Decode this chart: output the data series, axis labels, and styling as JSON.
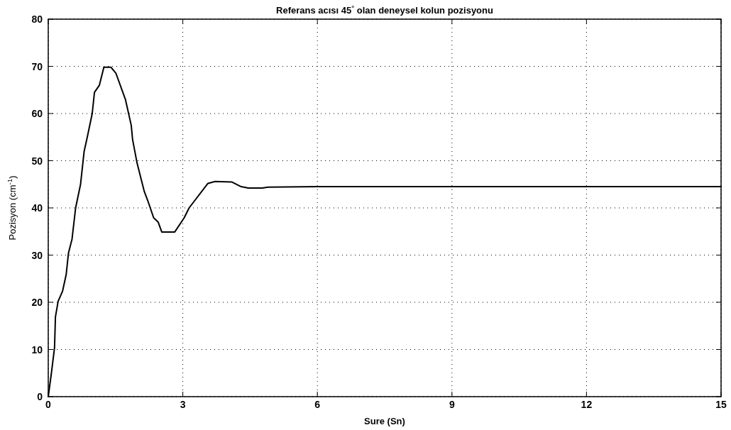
{
  "chart_data": {
    "type": "line",
    "title": "Referans acısı 45$^{°}$ olan deneysel kolun pozisyonu",
    "xlabel": "Sure (Sn)",
    "ylabel": "Pozisyon (cm$^{-1}$)",
    "xlim": [
      0,
      15
    ],
    "xticks": [
      0,
      3,
      6,
      9,
      12,
      15
    ],
    "ylim": [
      0,
      80
    ],
    "yticks": [
      0,
      10,
      20,
      30,
      40,
      50,
      60,
      70,
      80
    ],
    "grid": true,
    "marker": "none",
    "line_style": "solid",
    "series": [
      {
        "color": "#000000",
        "x": [
          0,
          0.07,
          0.14,
          0.16,
          0.22,
          0.32,
          0.4,
          0.45,
          0.53,
          0.61,
          0.72,
          0.8,
          0.87,
          0.98,
          1.03,
          1.14,
          1.24,
          1.4,
          1.51,
          1.72,
          1.85,
          1.88,
          1.98,
          2.14,
          2.22,
          2.35,
          2.45,
          2.53,
          2.82,
          3.03,
          3.14,
          3.56,
          3.72,
          4.09,
          4.3,
          4.46,
          4.77,
          4.9,
          6,
          7,
          9,
          12,
          15
        ],
        "values": [
          0,
          5,
          10.4,
          16.9,
          20.2,
          22.4,
          25.9,
          30.4,
          33.4,
          40,
          45,
          52,
          55,
          60,
          64.5,
          66,
          69.8,
          69.8,
          68.5,
          63,
          57.5,
          54.5,
          49.5,
          43.5,
          41.5,
          37.9,
          37,
          34.9,
          34.9,
          37.9,
          40,
          45.2,
          45.6,
          45.5,
          44.5,
          44.2,
          44.2,
          44.4,
          44.5,
          44.5,
          44.5,
          44.5,
          44.5
        ]
      }
    ]
  }
}
